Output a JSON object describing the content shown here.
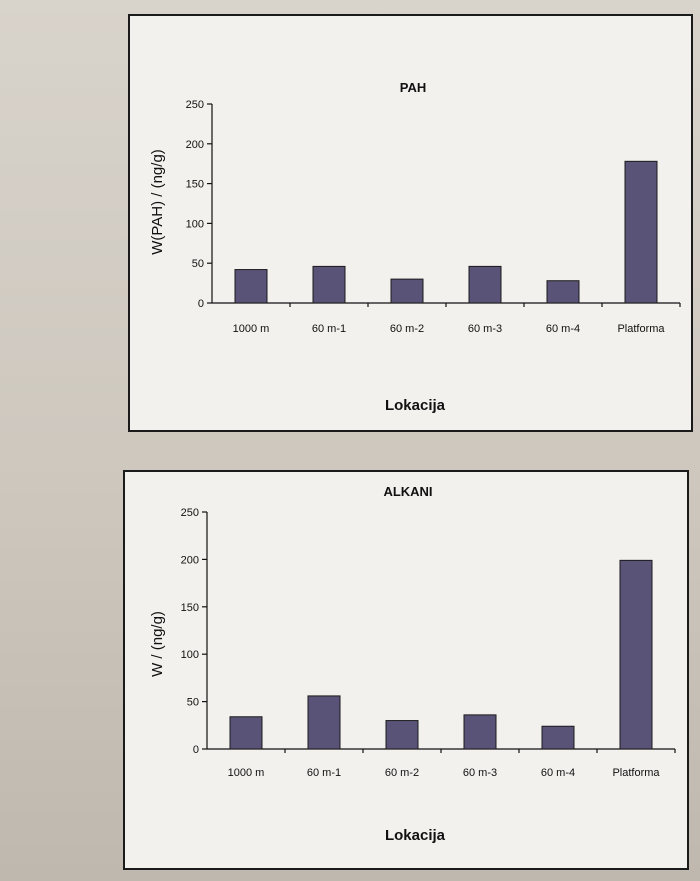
{
  "colors": {
    "bar": "#5a5378",
    "panel": "#f3f1ee"
  },
  "chart_data": [
    {
      "type": "bar",
      "title": "PAH",
      "ylabel": "W(PAH) / (ng/g)",
      "xlabel": "Lokacija",
      "categories": [
        "1000 m",
        "60 m-1",
        "60 m-2",
        "60 m-3",
        "60 m-4",
        "Platforma"
      ],
      "values": [
        42,
        46,
        30,
        46,
        28,
        178
      ],
      "ylim": [
        0,
        250
      ],
      "yticks": [
        0,
        50,
        100,
        150,
        200,
        250
      ],
      "grid": false,
      "legend": "none"
    },
    {
      "type": "bar",
      "title": "ALKANI",
      "ylabel": "W / (ng/g)",
      "xlabel": "Lokacija",
      "categories": [
        "1000 m",
        "60 m-1",
        "60 m-2",
        "60 m-3",
        "60 m-4",
        "Platforma"
      ],
      "values": [
        34,
        56,
        30,
        36,
        24,
        199
      ],
      "ylim": [
        0,
        250
      ],
      "yticks": [
        0,
        50,
        100,
        150,
        200,
        250
      ],
      "grid": false,
      "legend": "none"
    }
  ]
}
